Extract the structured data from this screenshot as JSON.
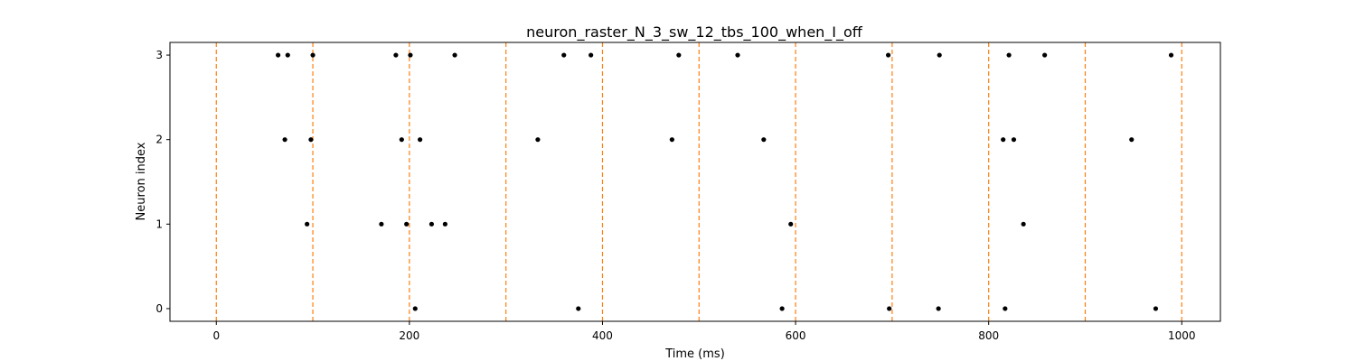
{
  "chart_data": {
    "type": "scatter",
    "title": "neuron_raster_N_3_sw_12_tbs_100_when_I_off",
    "xlabel": "Time (ms)",
    "ylabel": "Neuron index",
    "xlim": [
      -48,
      1040
    ],
    "ylim": [
      -0.15,
      3.15
    ],
    "xticks": [
      0,
      200,
      400,
      600,
      800,
      1000
    ],
    "yticks": [
      0,
      1,
      2,
      3
    ],
    "grid": false,
    "series": [
      {
        "neuron": 3,
        "spikes": [
          64,
          74,
          100,
          186,
          201,
          247,
          360,
          388,
          479,
          540,
          696,
          749,
          821,
          858,
          989
        ]
      },
      {
        "neuron": 2,
        "spikes": [
          71,
          98,
          192,
          211,
          333,
          472,
          567,
          815,
          826,
          948
        ]
      },
      {
        "neuron": 1,
        "spikes": [
          94,
          171,
          197,
          223,
          237,
          595,
          836
        ]
      },
      {
        "neuron": 0,
        "spikes": [
          206,
          375,
          586,
          697,
          748,
          817,
          973
        ]
      }
    ],
    "vlines": [
      0,
      100,
      200,
      300,
      400,
      500,
      600,
      700,
      800,
      900,
      1000
    ],
    "colors": {
      "spike": "#000000",
      "vline": "#ff7f0e"
    }
  }
}
